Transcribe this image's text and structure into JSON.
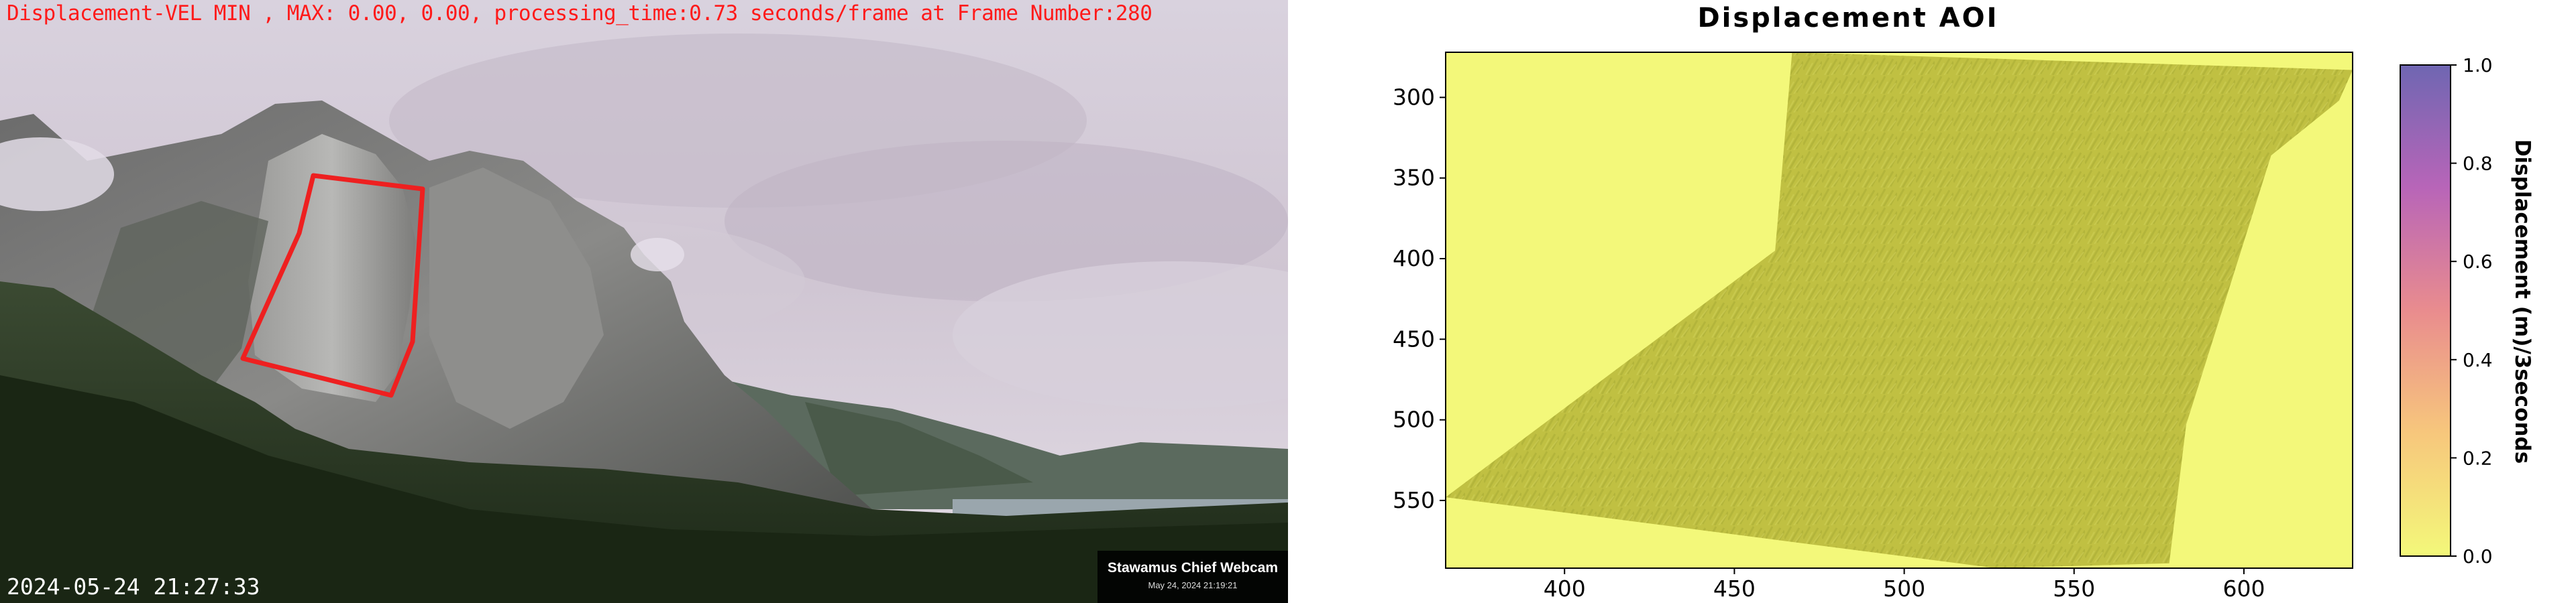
{
  "webcam": {
    "overlay_text": "Displacement-VEL MIN , MAX: 0.00, 0.00, processing_time:0.73 seconds/frame at Frame Number:280",
    "timestamp": "2024-05-24 21:27:33",
    "badge_name": "Stawamus Chief Webcam",
    "badge_date": "May 24, 2024 21:19:21",
    "overlay_color": "#ff1a1a"
  },
  "plot": {
    "title": "Displacement AOI",
    "colorbar_label": "Displacement (m)/3seconds",
    "x_ticks": [
      "400",
      "450",
      "500",
      "550",
      "600"
    ],
    "y_ticks": [
      "300",
      "350",
      "400",
      "450",
      "500",
      "550"
    ],
    "colorbar_ticks": [
      "0.0",
      "0.2",
      "0.4",
      "0.6",
      "0.8",
      "1.0"
    ]
  },
  "chart_data": {
    "type": "heatmap",
    "title": "Displacement AOI",
    "xlim": [
      365,
      632
    ],
    "ylim": [
      592,
      272
    ],
    "x_ticks": [
      400,
      450,
      500,
      550,
      600
    ],
    "y_ticks": [
      300,
      350,
      400,
      450,
      500,
      550
    ],
    "colorbar": {
      "label": "Displacement (m)/3seconds",
      "range": [
        0.0,
        1.0
      ],
      "ticks": [
        0.0,
        0.2,
        0.4,
        0.6,
        0.8,
        1.0
      ],
      "colormap": "plasma_r"
    },
    "displacement_min": 0.0,
    "displacement_max": 0.0,
    "aoi_polygon": [
      [
        365,
        548
      ],
      [
        462,
        395
      ],
      [
        467,
        272
      ],
      [
        632,
        283
      ],
      [
        628,
        302
      ],
      [
        608,
        336
      ],
      [
        583,
        503
      ],
      [
        578,
        589
      ],
      [
        527,
        592
      ]
    ],
    "background_color": "#f3f87a",
    "aoi_color": "#c0c143"
  }
}
